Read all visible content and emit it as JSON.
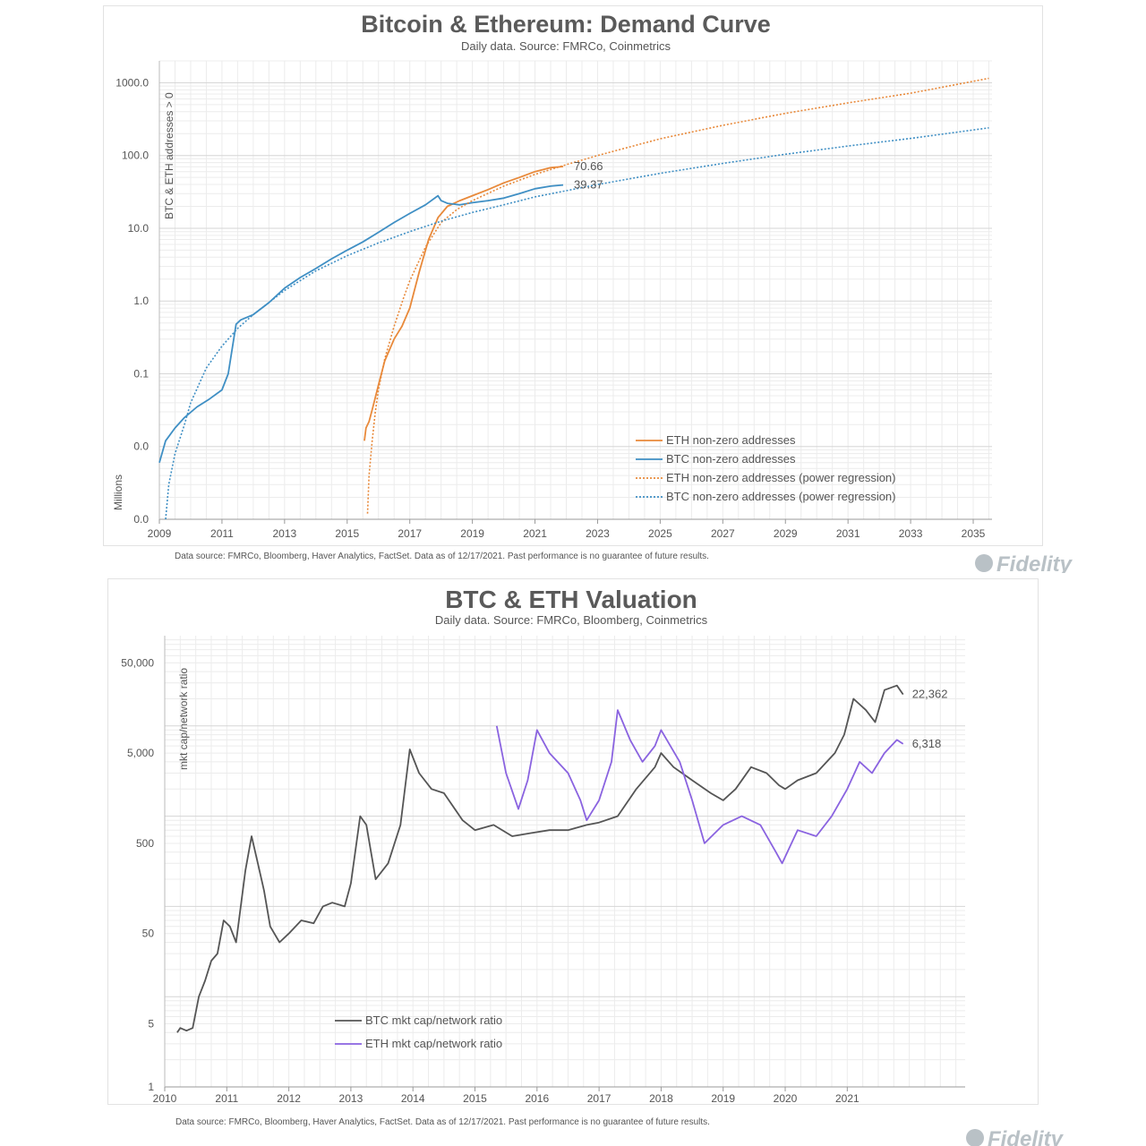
{
  "colors": {
    "eth_orange": "#e8893a",
    "btc_blue": "#3f8fc4",
    "btc_gray": "#555555",
    "eth_purple": "#8a63e0",
    "grid_major": "#d6d6d6",
    "grid_minor": "#ececec",
    "logo": "#b9c1c6"
  },
  "logo_text": "Fidelity",
  "chart_data": [
    {
      "type": "line",
      "title": "Bitcoin & Ethereum: Demand Curve",
      "subtitle": "Daily data.  Source: FMRCo, Coinmetrics",
      "ylabel_left": "Millions",
      "ylabel_top": "BTC & ETH addresses > 0",
      "yscale": "log",
      "ylim": [
        0.001,
        2000
      ],
      "y_ticks": [
        {
          "value": 0.001,
          "label": "0.0"
        },
        {
          "value": 0.01,
          "label": "0.0"
        },
        {
          "value": 0.1,
          "label": "0.1"
        },
        {
          "value": 1,
          "label": "1.0"
        },
        {
          "value": 10,
          "label": "10.0"
        },
        {
          "value": 100,
          "label": "100.0"
        },
        {
          "value": 1000,
          "label": "1000.0"
        }
      ],
      "xlim": [
        2009,
        2035.6
      ],
      "x_ticks": [
        "2009",
        "2011",
        "2013",
        "2015",
        "2017",
        "2019",
        "2021",
        "2023",
        "2025",
        "2027",
        "2029",
        "2031",
        "2033",
        "2035"
      ],
      "grid": true,
      "legend_position": "bottom-right",
      "series": [
        {
          "name": "ETH non-zero addresses",
          "style": "solid",
          "color": "#e8893a",
          "x": [
            2015.55,
            2015.6,
            2015.7,
            2015.8,
            2016.0,
            2016.2,
            2016.5,
            2016.75,
            2017.0,
            2017.3,
            2017.6,
            2017.9,
            2018.2,
            2018.6,
            2019.0,
            2019.5,
            2020.0,
            2020.5,
            2021.0,
            2021.5,
            2021.9
          ],
          "y": [
            0.012,
            0.018,
            0.022,
            0.032,
            0.07,
            0.15,
            0.3,
            0.45,
            0.8,
            2.5,
            7,
            14,
            20,
            24,
            28,
            34,
            42,
            50,
            60,
            68,
            70.66
          ]
        },
        {
          "name": "BTC non-zero addresses",
          "style": "solid",
          "color": "#3f8fc4",
          "x": [
            2009.0,
            2009.2,
            2009.5,
            2009.8,
            2010.2,
            2010.6,
            2011.0,
            2011.2,
            2011.45,
            2011.6,
            2012.0,
            2012.5,
            2013.0,
            2013.5,
            2014.0,
            2014.5,
            2015.0,
            2015.5,
            2016.0,
            2016.5,
            2017.0,
            2017.5,
            2017.9,
            2018.0,
            2018.2,
            2018.6,
            2019.0,
            2019.5,
            2020.0,
            2020.5,
            2021.0,
            2021.5,
            2021.9
          ],
          "y": [
            0.006,
            0.012,
            0.018,
            0.025,
            0.035,
            0.045,
            0.06,
            0.1,
            0.48,
            0.55,
            0.65,
            0.95,
            1.5,
            2.1,
            2.8,
            3.8,
            5,
            6.5,
            8.8,
            12,
            16,
            21,
            28,
            24,
            22,
            21,
            22.5,
            24,
            26,
            30,
            35,
            38,
            39.37
          ]
        },
        {
          "name": "ETH non-zero addresses (power regression)",
          "style": "dotted",
          "color": "#e8893a",
          "x": [
            2015.65,
            2015.7,
            2015.8,
            2015.9,
            2016.0,
            2016.2,
            2016.5,
            2016.8,
            2017.0,
            2017.5,
            2018.0,
            2018.5,
            2019.0,
            2020.0,
            2021.0,
            2022.0,
            2023.0,
            2025.0,
            2027.0,
            2029.0,
            2031.0,
            2033.0,
            2035.5
          ],
          "y": [
            0.0012,
            0.004,
            0.012,
            0.03,
            0.06,
            0.16,
            0.45,
            1.1,
            1.9,
            5.5,
            12,
            18,
            24,
            38,
            55,
            75,
            100,
            170,
            260,
            380,
            530,
            720,
            1150
          ]
        },
        {
          "name": "BTC non-zero addresses (power regression)",
          "style": "dotted",
          "color": "#3f8fc4",
          "x": [
            2009.2,
            2009.3,
            2009.5,
            2009.8,
            2010.0,
            2010.5,
            2011.0,
            2011.5,
            2012.0,
            2013.0,
            2014.0,
            2015.0,
            2016.0,
            2017.0,
            2018.0,
            2019.0,
            2020.0,
            2021.0,
            2023.0,
            2025.0,
            2027.0,
            2029.0,
            2031.0,
            2033.0,
            2035.5
          ],
          "y": [
            0.001,
            0.003,
            0.008,
            0.02,
            0.04,
            0.12,
            0.24,
            0.42,
            0.65,
            1.4,
            2.6,
            4.2,
            6.3,
            9,
            12.5,
            16.5,
            21,
            27,
            40,
            57,
            78,
            104,
            135,
            172,
            240
          ]
        }
      ],
      "annotations": [
        {
          "label": "70.66",
          "x": 2021.9,
          "y": 70.66,
          "color": "#e8893a"
        },
        {
          "label": "39.37",
          "x": 2021.9,
          "y": 39.37,
          "color": "#3f8fc4"
        }
      ],
      "footnote": "Data source: FMRCo, Bloomberg, Haver Analytics, FactSet. Data as of 12/17/2021. Past performance is no guarantee of future results."
    },
    {
      "type": "line",
      "title": "BTC & ETH Valuation",
      "subtitle": "Daily data.  Source: FMRCo, Bloomberg, Coinmetrics",
      "ylabel": "mkt cap/network ratio",
      "yscale": "log",
      "ylim": [
        1,
        100000
      ],
      "y_ticks": [
        {
          "value": 1,
          "label": "1"
        },
        {
          "value": 5,
          "label": "5"
        },
        {
          "value": 50,
          "label": "50"
        },
        {
          "value": 500,
          "label": "500"
        },
        {
          "value": 5000,
          "label": "5,000"
        },
        {
          "value": 50000,
          "label": "50,000"
        }
      ],
      "xlim": [
        2010,
        2022.9
      ],
      "x_ticks": [
        "2010",
        "2011",
        "2012",
        "2013",
        "2014",
        "2015",
        "2016",
        "2017",
        "2018",
        "2019",
        "2020",
        "2021"
      ],
      "grid": true,
      "legend_position": "bottom-left",
      "series": [
        {
          "name": "BTC mkt cap/network ratio",
          "color": "#555555",
          "x": [
            2010.2,
            2010.25,
            2010.35,
            2010.45,
            2010.55,
            2010.65,
            2010.75,
            2010.85,
            2010.95,
            2011.05,
            2011.15,
            2011.3,
            2011.4,
            2011.5,
            2011.6,
            2011.7,
            2011.85,
            2012.0,
            2012.2,
            2012.4,
            2012.55,
            2012.7,
            2012.9,
            2013.0,
            2013.15,
            2013.25,
            2013.4,
            2013.6,
            2013.8,
            2013.95,
            2014.1,
            2014.3,
            2014.5,
            2014.8,
            2015.0,
            2015.3,
            2015.6,
            2015.9,
            2016.2,
            2016.5,
            2016.8,
            2017.0,
            2017.3,
            2017.6,
            2017.9,
            2018.0,
            2018.2,
            2018.5,
            2018.8,
            2019.0,
            2019.2,
            2019.45,
            2019.7,
            2019.9,
            2020.0,
            2020.2,
            2020.5,
            2020.8,
            2020.95,
            2021.1,
            2021.3,
            2021.45,
            2021.6,
            2021.8,
            2021.9
          ],
          "y": [
            4,
            4.5,
            4.2,
            4.5,
            10,
            15,
            25,
            30,
            70,
            60,
            40,
            250,
            600,
            300,
            150,
            60,
            40,
            50,
            70,
            65,
            100,
            110,
            100,
            180,
            1000,
            800,
            200,
            300,
            800,
            5500,
            3000,
            2000,
            1800,
            900,
            700,
            800,
            600,
            650,
            700,
            700,
            800,
            850,
            1000,
            2000,
            3500,
            5000,
            3500,
            2500,
            1800,
            1500,
            2000,
            3500,
            3000,
            2200,
            2000,
            2500,
            3000,
            5000,
            8000,
            20000,
            15000,
            11000,
            25000,
            28000,
            22362
          ]
        },
        {
          "name": "ETH mkt cap/network ratio",
          "color": "#8a63e0",
          "x": [
            2015.35,
            2015.5,
            2015.7,
            2015.85,
            2016.0,
            2016.2,
            2016.5,
            2016.7,
            2016.8,
            2017.0,
            2017.2,
            2017.3,
            2017.5,
            2017.7,
            2017.9,
            2018.0,
            2018.3,
            2018.5,
            2018.7,
            2019.0,
            2019.3,
            2019.6,
            2019.85,
            2019.95,
            2020.2,
            2020.5,
            2020.75,
            2021.0,
            2021.2,
            2021.4,
            2021.6,
            2021.8,
            2021.9
          ],
          "y": [
            10000,
            3000,
            1200,
            2500,
            9000,
            5000,
            3000,
            1500,
            900,
            1500,
            4000,
            15000,
            7000,
            4000,
            6000,
            9000,
            4000,
            1500,
            500,
            800,
            1000,
            800,
            400,
            300,
            700,
            600,
            1000,
            2000,
            4000,
            3000,
            5000,
            7000,
            6318
          ]
        }
      ],
      "annotations": [
        {
          "label": "22,362",
          "x": 2021.9,
          "y": 22362,
          "color": "#555555"
        },
        {
          "label": "6,318",
          "x": 2021.9,
          "y": 6318,
          "color": "#8a63e0"
        }
      ],
      "footnote": "Data source: FMRCo, Bloomberg, Haver Analytics, FactSet. Data as of 12/17/2021. Past performance is no guarantee of future results."
    }
  ]
}
